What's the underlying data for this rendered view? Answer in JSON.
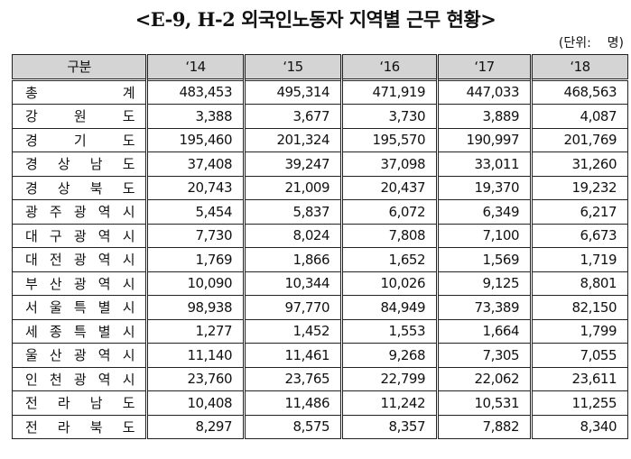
{
  "title": "<E-9, H-2 외국인노동자 지역별 근무 현황>",
  "unit": "(단위:    명)",
  "table": {
    "headers": [
      "구분",
      "‘14",
      "‘15",
      "‘16",
      "‘17",
      "‘18"
    ],
    "rows": [
      {
        "label": "총 계",
        "values": [
          "483,453",
          "495,314",
          "471,919",
          "447,033",
          "468,563"
        ]
      },
      {
        "label": "강 원 도",
        "values": [
          "3,388",
          "3,677",
          "3,730",
          "3,889",
          "4,087"
        ]
      },
      {
        "label": "경 기 도",
        "values": [
          "195,460",
          "201,324",
          "195,570",
          "190,997",
          "201,769"
        ]
      },
      {
        "label": "경 상 남 도",
        "values": [
          "37,408",
          "39,247",
          "37,098",
          "33,011",
          "31,260"
        ]
      },
      {
        "label": "경 상 북 도",
        "values": [
          "20,743",
          "21,009",
          "20,437",
          "19,370",
          "19,232"
        ]
      },
      {
        "label": "광 주 광 역 시",
        "values": [
          "5,454",
          "5,837",
          "6,072",
          "6,349",
          "6,217"
        ]
      },
      {
        "label": "대 구 광 역 시",
        "values": [
          "7,730",
          "8,024",
          "7,808",
          "7,100",
          "6,673"
        ]
      },
      {
        "label": "대 전 광 역 시",
        "values": [
          "1,769",
          "1,866",
          "1,652",
          "1,569",
          "1,719"
        ]
      },
      {
        "label": "부 산 광 역 시",
        "values": [
          "10,090",
          "10,344",
          "10,026",
          "9,125",
          "8,801"
        ]
      },
      {
        "label": "서 울 특 별 시",
        "values": [
          "98,938",
          "97,770",
          "84,949",
          "73,389",
          "82,150"
        ]
      },
      {
        "label": "세 종 특 별 시",
        "values": [
          "1,277",
          "1,452",
          "1,553",
          "1,664",
          "1,799"
        ]
      },
      {
        "label": "울 산 광 역 시",
        "values": [
          "11,140",
          "11,461",
          "9,268",
          "7,305",
          "7,055"
        ]
      },
      {
        "label": "인 천 광 역 시",
        "values": [
          "23,760",
          "23,765",
          "22,799",
          "22,062",
          "23,611"
        ]
      },
      {
        "label": "전 라 남 도",
        "values": [
          "10,408",
          "11,486",
          "11,242",
          "10,531",
          "11,255"
        ]
      },
      {
        "label": "전 라 북 도",
        "values": [
          "8,297",
          "8,575",
          "8,357",
          "7,882",
          "8,340"
        ]
      }
    ]
  }
}
